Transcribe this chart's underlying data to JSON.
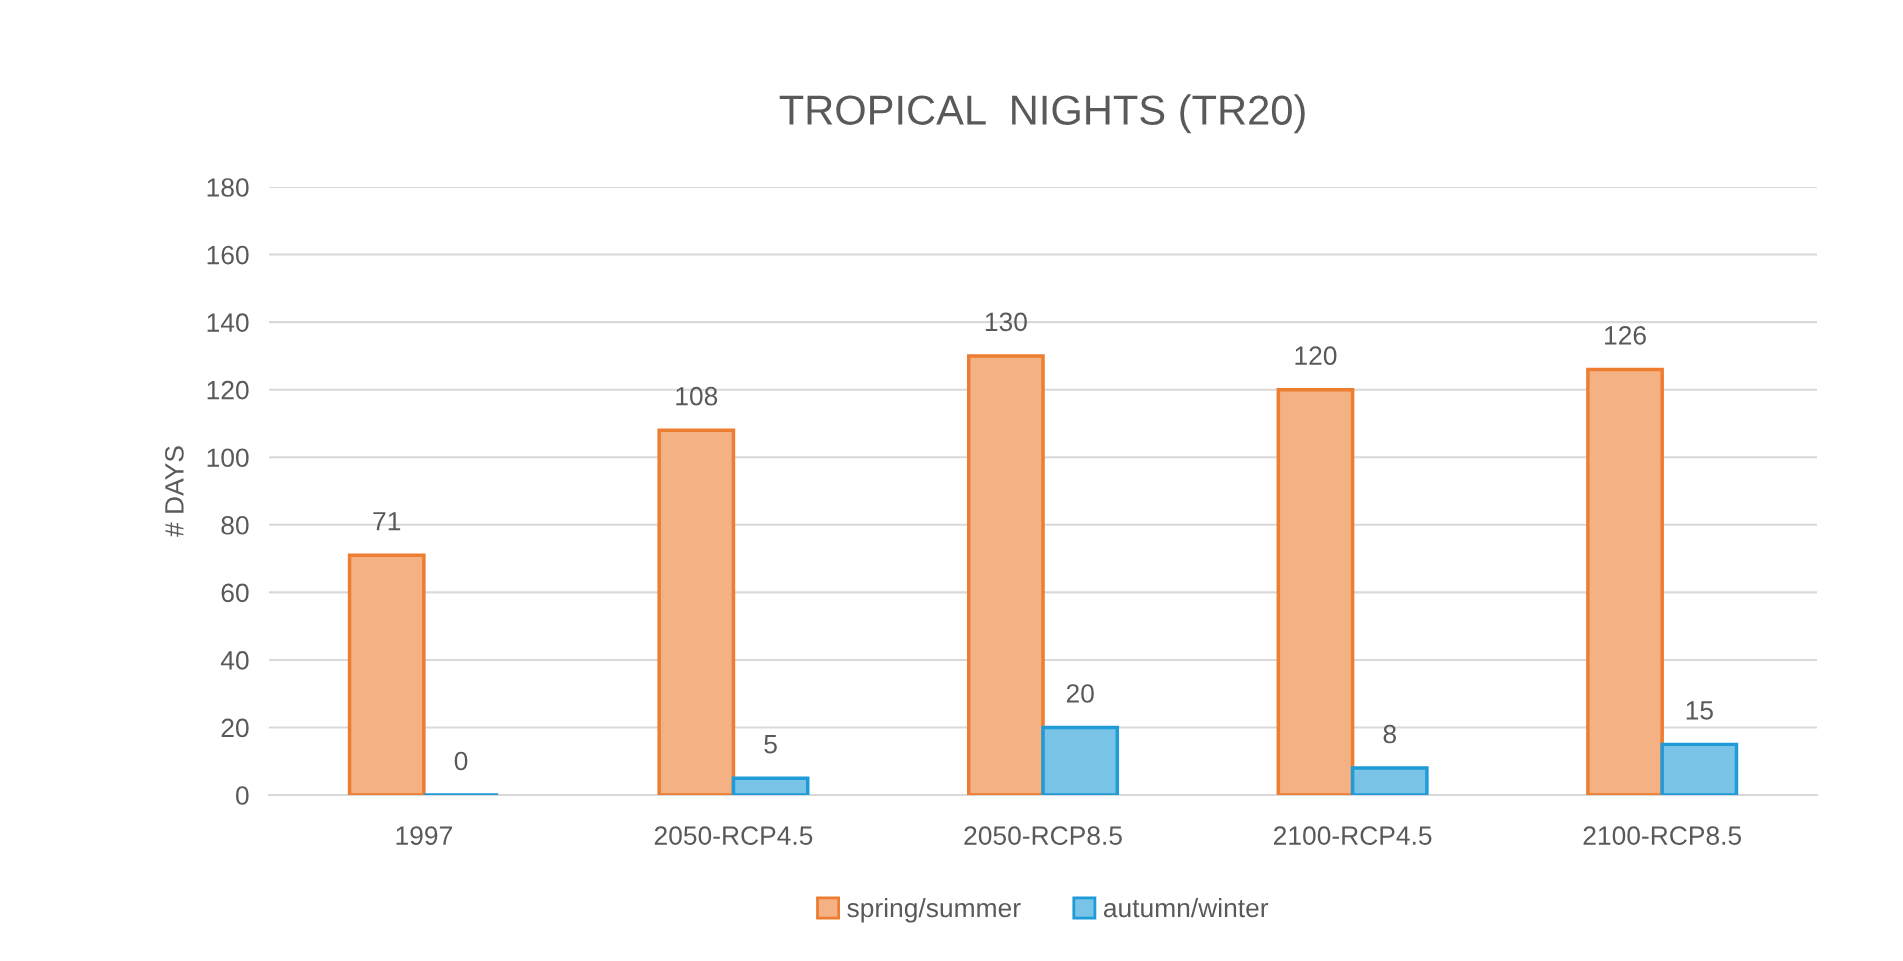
{
  "chart_data": {
    "type": "bar",
    "title": "TROPICAL  NIGHTS (TR20)",
    "ylabel": "# DAYS",
    "categories": [
      "1997",
      "2050-RCP4.5",
      "2050-RCP8.5",
      "2100-RCP4.5",
      "2100-RCP8.5"
    ],
    "series": [
      {
        "name": "spring/summer",
        "color": "#ed7d31",
        "values": [
          71,
          108,
          130,
          120,
          126
        ]
      },
      {
        "name": "autumn/winter",
        "color": "#1f9bd7",
        "values": [
          0,
          5,
          20,
          8,
          15
        ]
      }
    ],
    "ylim": [
      0,
      180
    ],
    "yticks": [
      0,
      20,
      40,
      60,
      80,
      100,
      120,
      140,
      160,
      180
    ],
    "grid": "y",
    "legend": "bottom",
    "data_labels": true
  }
}
